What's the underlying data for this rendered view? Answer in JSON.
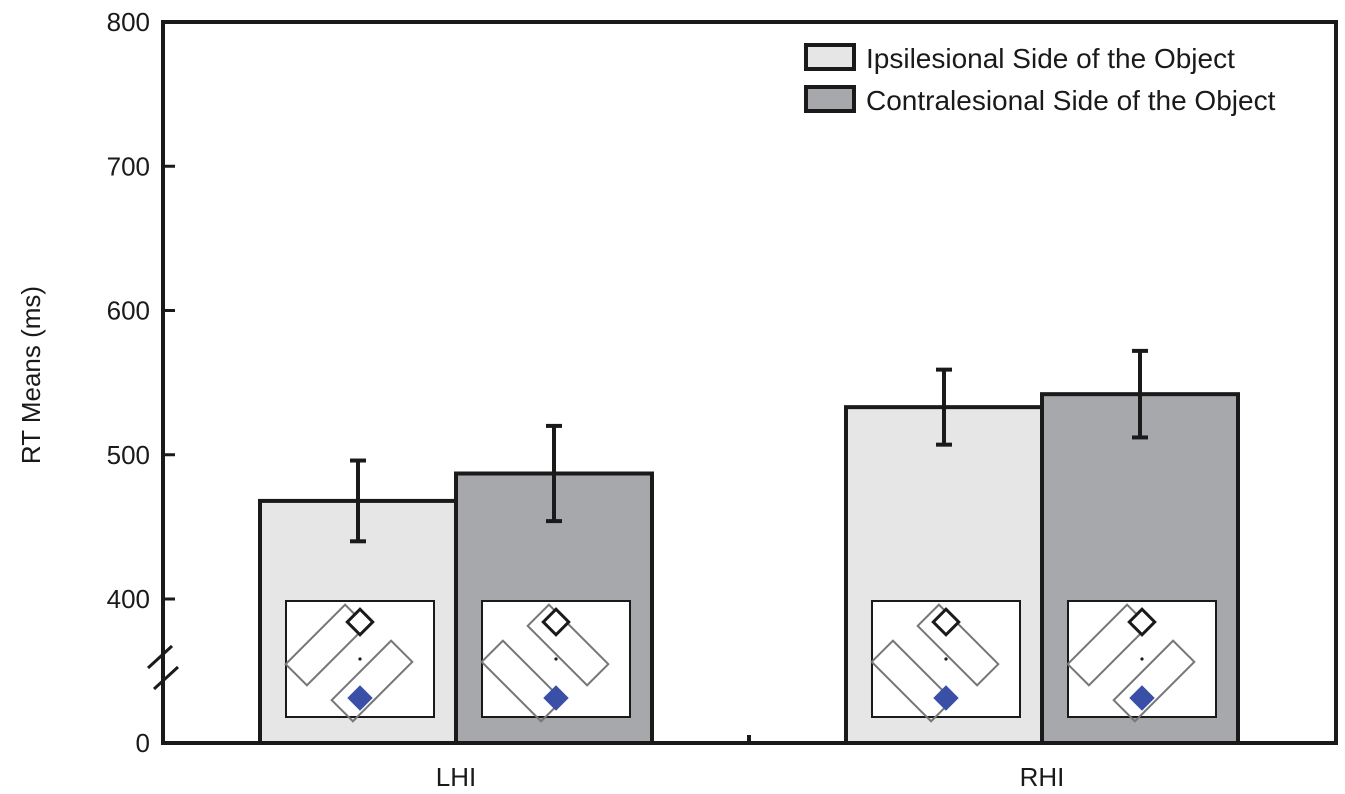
{
  "chart_data": {
    "type": "bar",
    "title": "",
    "xlabel": "",
    "ylabel": "RT Means (ms)",
    "categories": [
      "LHI",
      "RHI"
    ],
    "series": [
      {
        "name": "Ipsilesional Side of the Object",
        "color": "#e6e6e6",
        "values": [
          468,
          533
        ],
        "error": [
          28,
          26
        ]
      },
      {
        "name": "Contralesional Side of the Object",
        "color": "#a7a8ab",
        "values": [
          487,
          542
        ],
        "error": [
          33,
          30
        ]
      }
    ],
    "yticks": [
      0,
      400,
      500,
      600,
      700,
      800
    ],
    "ylim": [
      0,
      800
    ],
    "axis_break": {
      "below": 400,
      "drawn_from": 300
    },
    "legend_position": "top-right",
    "grid": false,
    "inset_icons": {
      "description_icon": "diamond-cue-and-rectangles-icon",
      "target_color": "#3a4fa6"
    }
  }
}
